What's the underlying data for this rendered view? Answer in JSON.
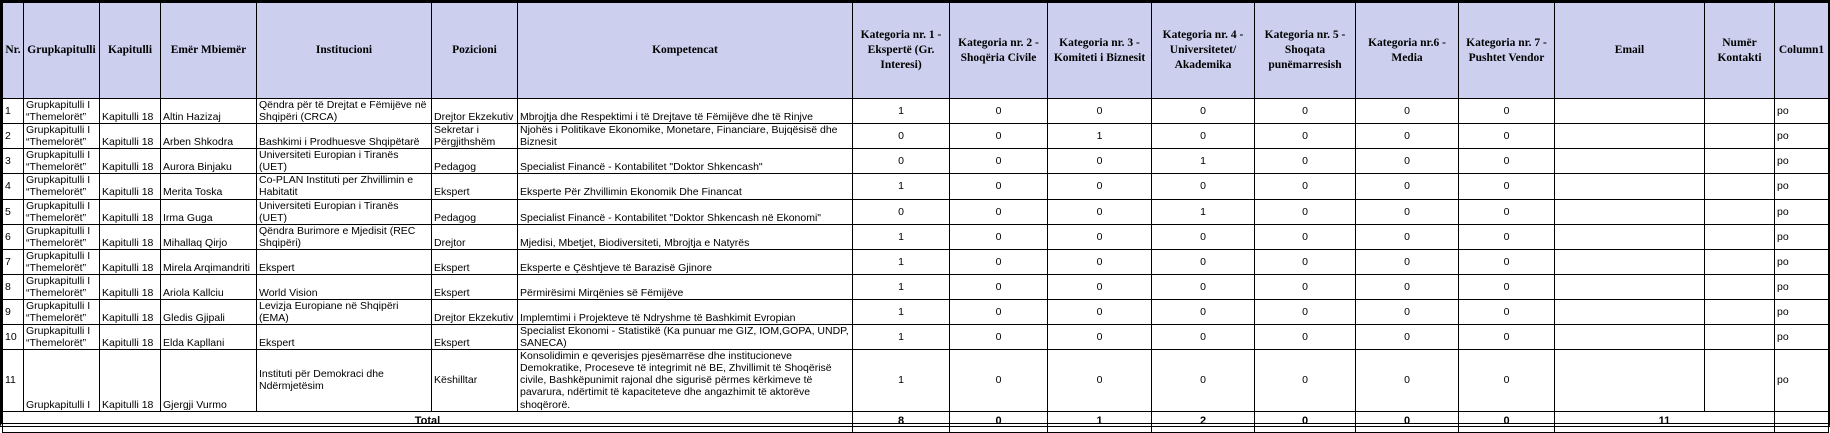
{
  "headers": [
    "Nr.",
    "Grupkapitulli",
    "Kapitulli",
    "Emër Mbiemër",
    "Institucioni",
    "Pozicioni",
    "Kompetencat",
    "Kategoria nr. 1 - Ekspertë (Gr. Interesi)",
    "Kategoria nr. 2 - Shoqëria Civile",
    "Kategoria nr. 3 - Komiteti i Biznesit",
    "Kategoria nr. 4 - Universitetet/ Akademika",
    "Kategoria nr. 5 - Shoqata punëmarresish",
    "Kategoria nr.6 - Media",
    "Kategoria nr. 7 - Pushtet Vendor",
    "Email",
    "Numër Kontakti",
    "Column1"
  ],
  "rows": [
    {
      "nr": "1",
      "grup": "Grupkapitulli I “Themelorët”",
      "kap": "Kapitulli 18",
      "emer": "Altin Hazizaj",
      "inst": "Qëndra për të Drejtat e Fëmijëve në Shqipëri (CRCA)",
      "poz": "Drejtor Ekzekutiv",
      "komp": "Mbrojtja dhe Respektimi i të Drejtave të Fëmijëve dhe të Rinjve",
      "k": [
        "1",
        "0",
        "0",
        "0",
        "0",
        "0",
        "0"
      ],
      "email": "",
      "kontakt": "",
      "col1": "po"
    },
    {
      "nr": "2",
      "grup": "Grupkapitulli I “Themelorët”",
      "kap": "Kapitulli 18",
      "emer": "Arben Shkodra",
      "inst": "Bashkimi i Prodhuesve Shqipëtarë",
      "poz": "Sekretar i Përgjithshëm",
      "komp": "Njohës i Politikave Ekonomike, Monetare, Financiare, Bujqësisë dhe Biznesit",
      "k": [
        "0",
        "0",
        "1",
        "0",
        "0",
        "0",
        "0"
      ],
      "email": "",
      "kontakt": "",
      "col1": "po"
    },
    {
      "nr": "3",
      "grup": "Grupkapitulli I “Themelorët”",
      "kap": "Kapitulli 18",
      "emer": "Aurora Binjaku",
      "inst": "Universiteti Europian i Tiranës (UET)",
      "poz": "Pedagog",
      "komp": "Specialist Financë - Kontabilitet \"Doktor Shkencash\"",
      "k": [
        "0",
        "0",
        "0",
        "1",
        "0",
        "0",
        "0"
      ],
      "email": "",
      "kontakt": "",
      "col1": "po"
    },
    {
      "nr": "4",
      "grup": "Grupkapitulli I “Themelorët”",
      "kap": "Kapitulli 18",
      "emer": "Merita Toska",
      "inst": "Co-PLAN Instituti per Zhvillimin e Habitatit",
      "poz": "Ekspert",
      "komp": "Eksperte Për Zhvillimin Ekonomik Dhe Financat",
      "k": [
        "1",
        "0",
        "0",
        "0",
        "0",
        "0",
        "0"
      ],
      "email": "",
      "kontakt": "",
      "col1": "po"
    },
    {
      "nr": "5",
      "grup": "Grupkapitulli I “Themelorët”",
      "kap": "Kapitulli 18",
      "emer": "Irma Guga",
      "inst": "Universiteti Europian i Tiranës (UET)",
      "poz": "Pedagog",
      "komp": "Specialist Financë - Kontabilitet \"Doktor Shkencash në Ekonomi\"",
      "k": [
        "0",
        "0",
        "0",
        "1",
        "0",
        "0",
        "0"
      ],
      "email": "",
      "kontakt": "",
      "col1": "po"
    },
    {
      "nr": "6",
      "grup": "Grupkapitulli I “Themelorët”",
      "kap": "Kapitulli 18",
      "emer": "Mihallaq Qirjo",
      "inst": "Qëndra Burimore e Mjedisit (REC Shqipëri)",
      "poz": "Drejtor",
      "komp": "Mjedisi, Mbetjet, Biodiversiteti, Mbrojtja e Natyrës",
      "k": [
        "1",
        "0",
        "0",
        "0",
        "0",
        "0",
        "0"
      ],
      "email": "",
      "kontakt": "",
      "col1": "po"
    },
    {
      "nr": "7",
      "grup": "Grupkapitulli I “Themelorët”",
      "kap": "Kapitulli 18",
      "emer": "Mirela Arqimandriti",
      "inst": "Ekspert",
      "poz": "Ekspert",
      "komp": "Eksperte e Çështjeve të Barazisë Gjinore",
      "k": [
        "1",
        "0",
        "0",
        "0",
        "0",
        "0",
        "0"
      ],
      "email": "",
      "kontakt": "",
      "col1": "po"
    },
    {
      "nr": "8",
      "grup": "Grupkapitulli I “Themelorët”",
      "kap": "Kapitulli 18",
      "emer": "Ariola Kallciu",
      "inst": "World Vision",
      "poz": "Ekspert",
      "komp": "Përmirësimi  Mirqënies së Fëmijëve",
      "k": [
        "1",
        "0",
        "0",
        "0",
        "0",
        "0",
        "0"
      ],
      "email": "",
      "kontakt": "",
      "col1": "po"
    },
    {
      "nr": "9",
      "grup": "Grupkapitulli I “Themelorët”",
      "kap": "Kapitulli 18",
      "emer": "Gledis Gjipali",
      "inst": "Levizja Europiane në Shqipëri (EMA)",
      "poz": "Drejtor Ekzekutiv",
      "komp": "Implemtimi i Projekteve të Ndryshme të Bashkimit Evropian",
      "k": [
        "1",
        "0",
        "0",
        "0",
        "0",
        "0",
        "0"
      ],
      "email": "",
      "kontakt": "",
      "col1": "po"
    },
    {
      "nr": "10",
      "grup": "Grupkapitulli I “Themelorët”",
      "kap": "Kapitulli 18",
      "emer": "Elda Kapllani",
      "inst": "Ekspert",
      "poz": "Ekspert",
      "komp": "Specialist Ekonomi - Statistikë (Ka punuar me GIZ, IOM,GOPA, UNDP, SANECA)",
      "k": [
        "1",
        "0",
        "0",
        "0",
        "0",
        "0",
        "0"
      ],
      "email": "",
      "kontakt": "",
      "col1": "po"
    },
    {
      "nr": "11",
      "grup": "Grupkapitulli I",
      "kap": "Kapitulli 18",
      "emer": "Gjergji Vurmo",
      "inst": "Instituti për Demokraci dhe Ndërmjetësim",
      "poz": "Këshilltar",
      "komp": "Konsolidimin e qeverisjes pjesëmarrëse dhe institucioneve Demokratike, Proceseve të integrimit në BE, Zhvillimit të Shoqërisë civile, Bashkëpunimit rajonal dhe sigurisë përmes kërkimeve të pavarura, ndërtimit të kapaciteteve dhe angazhimit të aktorëve shoqërorë.",
      "k": [
        "1",
        "0",
        "0",
        "0",
        "0",
        "0",
        "0"
      ],
      "email": "",
      "kontakt": "",
      "col1": "po"
    }
  ],
  "total": {
    "label": "Total",
    "k": [
      "8",
      "0",
      "1",
      "2",
      "0",
      "0",
      "0"
    ],
    "contacts": "11"
  }
}
